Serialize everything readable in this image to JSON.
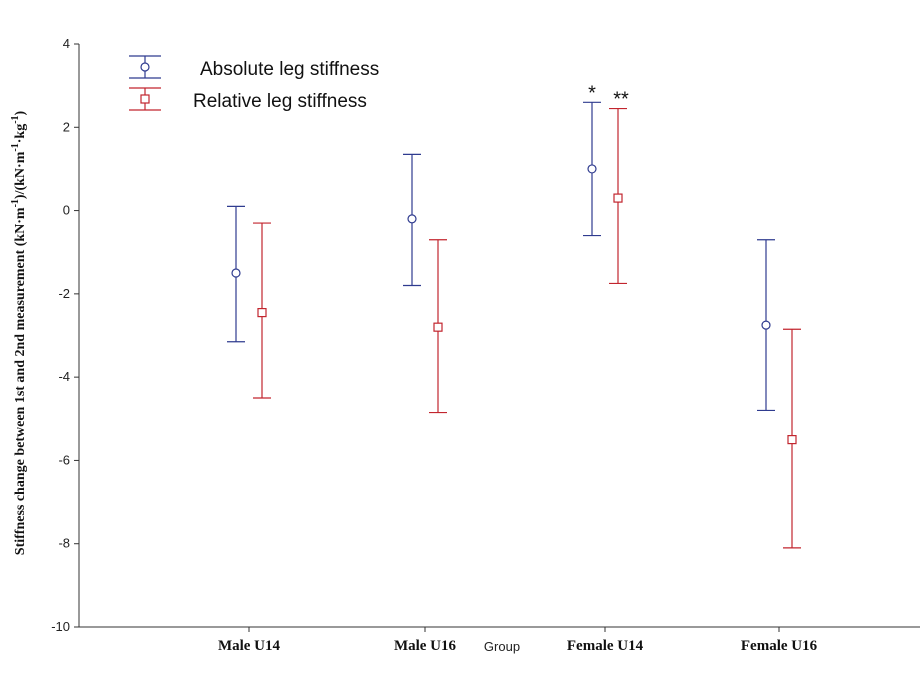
{
  "chart_data": {
    "type": "scatter",
    "subtype": "error-bar",
    "x_label": "Group",
    "y_label_parts": {
      "main": "Stiffness change between 1st and 2nd measurement (kN·m",
      "sup1": "-1",
      "mid1": ")/(kN·m",
      "sup2": "-1",
      "mid2": "·kg",
      "sup3": "-1",
      "end": ")"
    },
    "categories": [
      "Male U14",
      "Male U16",
      "Female U14",
      "Female U16"
    ],
    "ylim": [
      -10,
      4
    ],
    "y_ticks": [
      4,
      2,
      0,
      -2,
      -4,
      -6,
      -8,
      -10
    ],
    "legend_position": "top-left",
    "series": [
      {
        "name": "Absolute leg stiffness",
        "color": "#2f3b8f",
        "marker": "circle",
        "mean": [
          -1.5,
          -0.2,
          1.0,
          -2.75
        ],
        "upper": [
          0.1,
          1.35,
          2.6,
          -0.7
        ],
        "lower": [
          -3.15,
          -1.8,
          -0.6,
          -4.8
        ]
      },
      {
        "name": "Relative leg stiffness",
        "color": "#c2252e",
        "marker": "square",
        "mean": [
          -2.45,
          -2.8,
          0.3,
          -5.5
        ],
        "upper": [
          -0.3,
          -0.7,
          2.45,
          -2.85
        ],
        "lower": [
          -4.5,
          -4.85,
          -1.75,
          -8.1
        ]
      }
    ],
    "annotations": [
      {
        "text": "*",
        "category": 2,
        "series": 0
      },
      {
        "text": "**",
        "category": 2,
        "series": 1
      }
    ]
  }
}
